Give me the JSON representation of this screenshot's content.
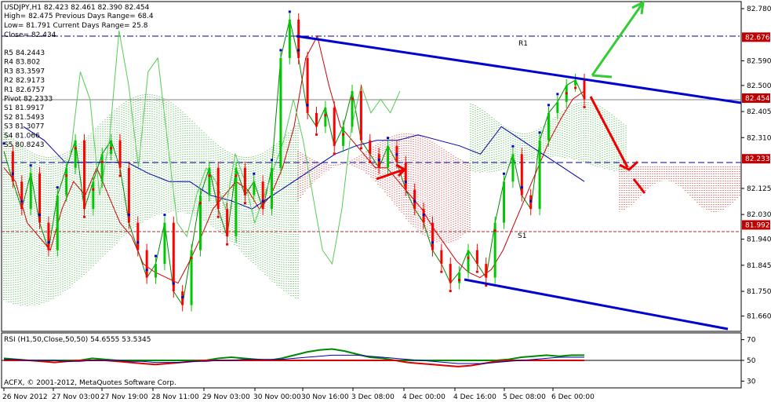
{
  "header": {
    "line1": "USDJPY,H1  82.423 82.461 82.390 82.454",
    "line2": "High= 82.475   Previous Days Range= 68.4",
    "line3": "Low= 81.791   Current Days Range= 25.8",
    "line4": "Close= 82.434"
  },
  "pivots": [
    {
      "key": "R5",
      "text": "R5 84.2443",
      "value": 84.2443
    },
    {
      "key": "R4",
      "text": "R4 83.802",
      "value": 83.802
    },
    {
      "key": "R3",
      "text": "R3 83.3597",
      "value": 83.3597
    },
    {
      "key": "R2",
      "text": "R2 82.9173",
      "value": 82.9173
    },
    {
      "key": "R1",
      "text": "R1 82.6757",
      "value": 82.6757
    },
    {
      "key": "Pivot",
      "text": "Pivot 82.2333",
      "value": 82.2333
    },
    {
      "key": "S1",
      "text": "S1 81.9917",
      "value": 81.9917
    },
    {
      "key": "S2",
      "text": "S2 81.5493",
      "value": 81.5493
    },
    {
      "key": "S3",
      "text": "S3 81.3077",
      "value": 81.3077
    },
    {
      "key": "S4",
      "text": "S4 81.066",
      "value": 81.066
    },
    {
      "key": "S5",
      "text": "S5 80.8243",
      "value": 80.8243
    }
  ],
  "chart_labels": {
    "r1": "R1",
    "s1": "S1"
  },
  "copyright": "ACFX, © 2001-2012, MetaQuotes Software Corp.",
  "rsi_label": "RSI (H1,50,Close,50,50) 54.6555 53.5345",
  "colors": {
    "up_candle": "#00c800",
    "down_candle": "#ff0000",
    "trend_line": "#0000d0",
    "green_arrow": "#33cc33",
    "red_arrow": "#ee0000",
    "cloud_green": "#33aa33",
    "cloud_red": "#cc2222",
    "price_tag": "#c00000"
  },
  "chart_data": {
    "type": "line",
    "symbol": "USDJPY,H1",
    "ylim": [
      81.61,
      82.8
    ],
    "y_ticks": [
      "82.780",
      "82.590",
      "82.500",
      "82.405",
      "82.310",
      "82.125",
      "82.030",
      "81.940",
      "81.845",
      "81.750",
      "81.660"
    ],
    "tagged_levels": [
      {
        "label": "82.676",
        "value": 82.676
      },
      {
        "label": "82.454",
        "value": 82.454
      },
      {
        "label": "82.233",
        "value": 82.233
      },
      {
        "label": "81.992",
        "value": 81.992
      }
    ],
    "x_labels": [
      "26 Nov 2012",
      "27 Nov 03:00",
      "27 Nov 19:00",
      "28 Nov 11:00",
      "29 Nov 03:00",
      "30 Nov 00:00",
      "30 Nov 16:00",
      "3 Dec 08:00",
      "4 Dec 00:00",
      "4 Dec 16:00",
      "5 Dec 08:00",
      "6 Dec 00:00"
    ],
    "series": [
      {
        "values": [
          82.26,
          82.15,
          82.05,
          82.18,
          82.0,
          81.9,
          82.1,
          82.2,
          82.3,
          82.05,
          82.15,
          82.25,
          82.3,
          82.2,
          82.0,
          81.9,
          81.8,
          81.85,
          82.0,
          81.75,
          81.7,
          81.9,
          82.1,
          82.2,
          82.05,
          81.95,
          82.2,
          82.1,
          82.15,
          82.05,
          82.2,
          82.6,
          82.74,
          82.6,
          82.4,
          82.35,
          82.42,
          82.28,
          82.35,
          82.48,
          82.3,
          82.25,
          82.2,
          82.28,
          82.22,
          82.12,
          82.05,
          82.0,
          81.9,
          81.85,
          81.78,
          81.82,
          81.9,
          81.85,
          81.8,
          82.0,
          82.15,
          82.25,
          82.1,
          82.05,
          82.3,
          82.4,
          82.44,
          82.5,
          82.52,
          82.45
        ]
      },
      {
        "values": [
          82.2,
          82.15,
          82.0,
          81.95,
          81.9,
          82.05,
          82.15,
          82.1,
          82.2,
          82.1,
          82.0,
          81.95,
          81.85,
          81.82,
          81.8,
          81.78,
          81.86,
          81.95,
          82.05,
          82.1,
          82.15,
          82.12,
          82.05,
          82.1,
          82.2,
          82.35,
          82.6,
          82.68,
          82.5,
          82.35,
          82.3,
          82.25,
          82.2,
          82.2,
          82.15,
          82.1,
          82.05,
          81.98,
          81.92,
          81.86,
          81.82,
          81.8,
          81.83,
          81.9,
          82.0,
          82.1,
          82.2,
          82.3,
          82.38,
          82.45,
          82.48
        ]
      },
      {
        "values": [
          82.35,
          82.3,
          82.22,
          82.22,
          82.22,
          82.22,
          82.18,
          82.15,
          82.15,
          82.1,
          82.08,
          82.05,
          82.1,
          82.15,
          82.2,
          82.25,
          82.28,
          82.3,
          82.3,
          82.32,
          82.3,
          82.28,
          82.25,
          82.35,
          82.3,
          82.25,
          82.2,
          82.15
        ]
      },
      {
        "values": [
          82.25,
          82.55,
          82.45,
          82.1,
          82.3,
          82.7,
          82.5,
          82.2,
          82.55,
          82.6,
          82.3,
          82.0,
          81.95,
          82.1,
          82.2,
          82.15,
          82.05,
          82.25,
          82.15,
          82.0,
          82.1,
          82.2,
          82.3,
          82.45,
          82.3,
          82.1,
          81.9,
          81.85,
          82.05,
          82.35,
          82.5,
          82.4,
          82.45,
          82.4,
          82.48
        ]
      }
    ],
    "rsi": {
      "label": "RSI (H1,50,Close,50,50) 54.6555 53.5345",
      "ylim": [
        25,
        75
      ],
      "y_ticks": [
        "70",
        "50",
        "30"
      ],
      "level": 50,
      "values": [
        52,
        51,
        50,
        49,
        48,
        49,
        50,
        52,
        51,
        49,
        48,
        47,
        46,
        47,
        48,
        49,
        50,
        52,
        53,
        52,
        51,
        50,
        52,
        55,
        58,
        60,
        61,
        59,
        56,
        53,
        52,
        50,
        48,
        47,
        46,
        45,
        44,
        45,
        47,
        49,
        51,
        53,
        54,
        55,
        54,
        55,
        55
      ],
      "signal": [
        51,
        51,
        50,
        50,
        50,
        49,
        49,
        50,
        50,
        50,
        49,
        49,
        48,
        48,
        48,
        49,
        49,
        50,
        50,
        51,
        51,
        51,
        51,
        52,
        53,
        54,
        55,
        55,
        55,
        54,
        53,
        52,
        51,
        50,
        49,
        48,
        47,
        47,
        47,
        48,
        49,
        50,
        51,
        52,
        53,
        53,
        53
      ]
    }
  }
}
